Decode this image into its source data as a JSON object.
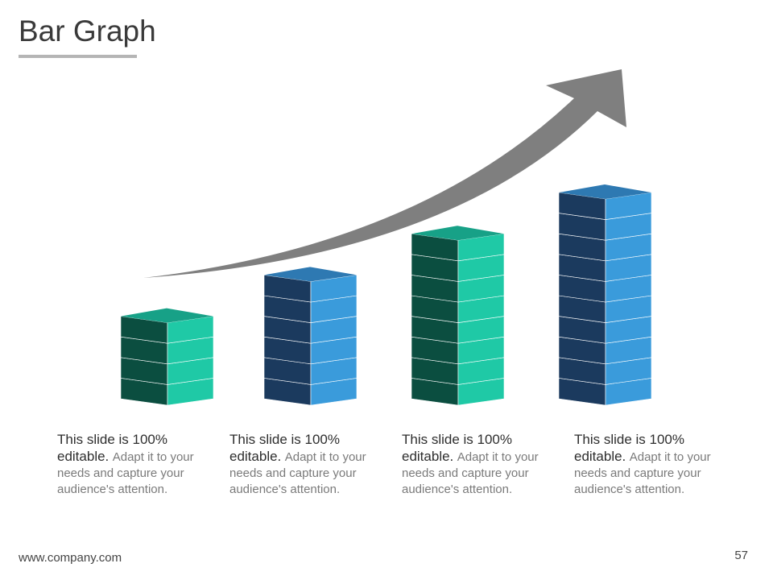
{
  "title": "Bar Graph",
  "bars": [
    {
      "blocks": 4,
      "color": "green"
    },
    {
      "blocks": 6,
      "color": "blue"
    },
    {
      "blocks": 8,
      "color": "green"
    },
    {
      "blocks": 10,
      "color": "blue"
    }
  ],
  "captions": [
    {
      "lead": "This slide is 100% editable.",
      "body": "Adapt it to your needs and capture your audience's attention."
    },
    {
      "lead": "This slide is 100% editable.",
      "body": "Adapt it to your needs and capture your audience's attention."
    },
    {
      "lead": "This slide is 100% editable.",
      "body": "Adapt it to your needs and capture your audience's attention."
    },
    {
      "lead": "This slide is 100% editable.",
      "body": "Adapt it to your needs and capture your audience's attention."
    }
  ],
  "footer": "www.company.com",
  "page_number": 57
}
